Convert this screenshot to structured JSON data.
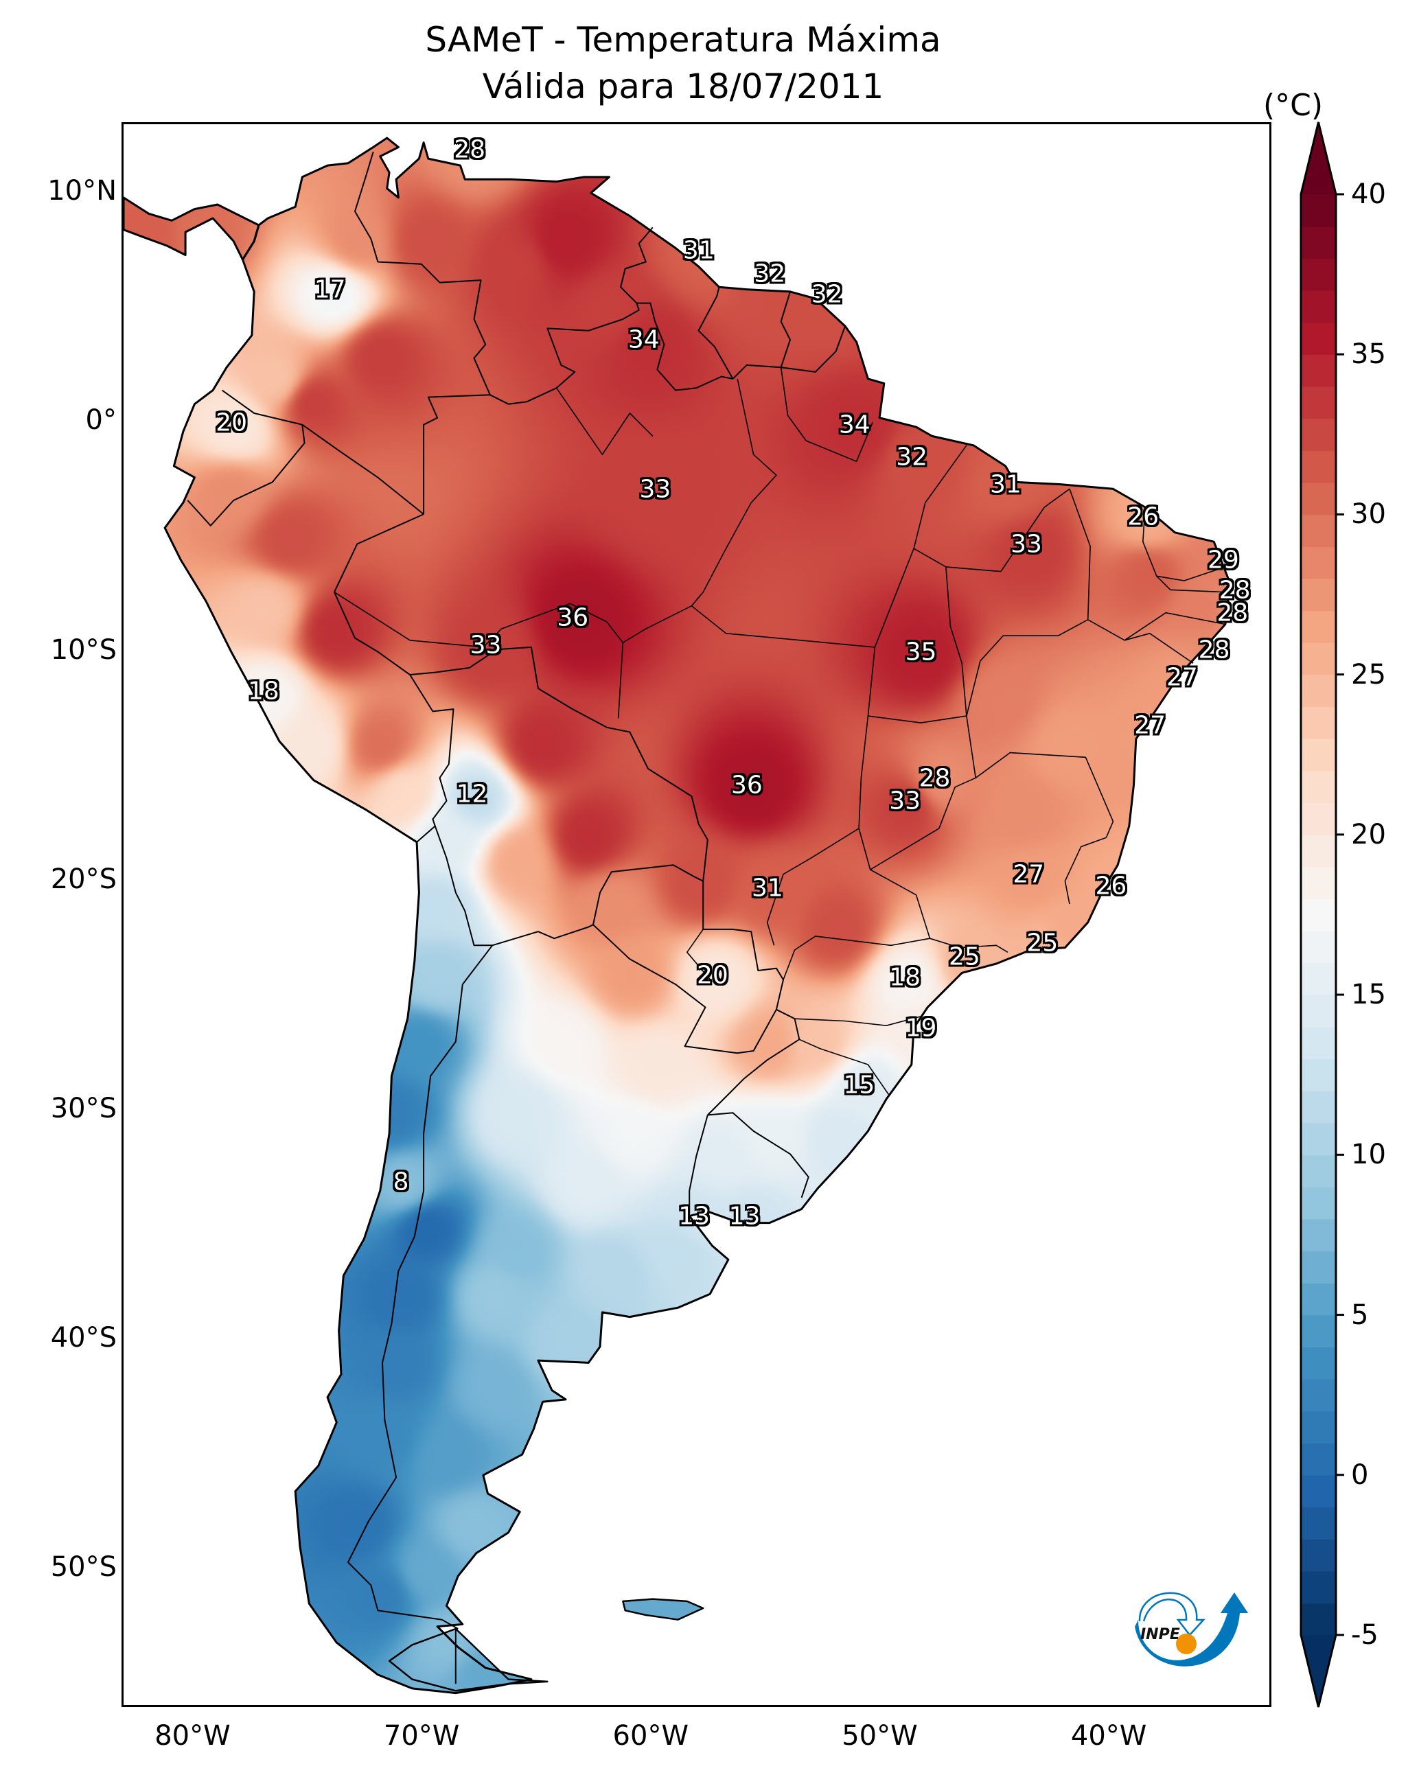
{
  "title": {
    "line1": "SAMeT - Temperatura Máxima",
    "line2": "Válida para 18/07/2011"
  },
  "colorbar": {
    "unit_label": "(°C)",
    "ticks": [
      "40",
      "35",
      "30",
      "25",
      "20",
      "15",
      "10",
      "5",
      "0",
      "-5"
    ],
    "colors": [
      "#053061",
      "#2166ac",
      "#4393c3",
      "#92c5de",
      "#d1e5f0",
      "#f7f7f7",
      "#fddbc7",
      "#f4a582",
      "#d6604d",
      "#b2182b",
      "#67001f"
    ]
  },
  "logo": {
    "text": "INPE",
    "blue": "#0077bb",
    "orange": "#f39200"
  },
  "chart_data": {
    "type": "heatmap",
    "title": "SAMeT - Temperatura Máxima — Válida para 18/07/2011",
    "variable": "Maximum temperature",
    "units": "°C",
    "colormap": "RdBu_r",
    "vmin": -5,
    "vmax": 40,
    "colorbar_extend": "both",
    "colorbar_ticks": [
      -5,
      0,
      5,
      10,
      15,
      20,
      25,
      30,
      35,
      40
    ],
    "lon_range": [
      -83.1,
      -32.9
    ],
    "lat_range": [
      -56.1,
      13.0
    ],
    "xticks": [
      "80°W",
      "70°W",
      "60°W",
      "50°W",
      "40°W"
    ],
    "yticks": [
      "10°N",
      "0°",
      "10°S",
      "20°S",
      "30°S",
      "40°S",
      "50°S"
    ],
    "xtick_values": [
      -80,
      -70,
      -60,
      -50,
      -40
    ],
    "ytick_values": [
      10,
      0,
      -10,
      -20,
      -30,
      -40,
      -50
    ],
    "station_labels": [
      {
        "value": "28",
        "lon": -67.9,
        "lat": 11.8
      },
      {
        "value": "17",
        "lon": -74.0,
        "lat": 5.7
      },
      {
        "value": "31",
        "lon": -57.9,
        "lat": 7.4
      },
      {
        "value": "32",
        "lon": -54.8,
        "lat": 6.4
      },
      {
        "value": "32",
        "lon": -52.3,
        "lat": 5.5
      },
      {
        "value": "34",
        "lon": -60.3,
        "lat": 3.5
      },
      {
        "value": "20",
        "lon": -78.3,
        "lat": -0.1
      },
      {
        "value": "34",
        "lon": -51.1,
        "lat": -0.2
      },
      {
        "value": "32",
        "lon": -48.6,
        "lat": -1.6
      },
      {
        "value": "31",
        "lon": -44.5,
        "lat": -2.8
      },
      {
        "value": "33",
        "lon": -59.8,
        "lat": -3.0
      },
      {
        "value": "26",
        "lon": -38.5,
        "lat": -4.2
      },
      {
        "value": "33",
        "lon": -43.6,
        "lat": -5.4
      },
      {
        "value": "29",
        "lon": -35.0,
        "lat": -6.1
      },
      {
        "value": "28",
        "lon": -34.5,
        "lat": -7.4
      },
      {
        "value": "28",
        "lon": -34.6,
        "lat": -8.4
      },
      {
        "value": "36",
        "lon": -63.4,
        "lat": -8.6
      },
      {
        "value": "33",
        "lon": -67.2,
        "lat": -9.8
      },
      {
        "value": "28",
        "lon": -35.4,
        "lat": -10.0
      },
      {
        "value": "35",
        "lon": -48.2,
        "lat": -10.1
      },
      {
        "value": "27",
        "lon": -36.8,
        "lat": -11.2
      },
      {
        "value": "18",
        "lon": -76.9,
        "lat": -11.8
      },
      {
        "value": "27",
        "lon": -38.2,
        "lat": -13.3
      },
      {
        "value": "36",
        "lon": -55.8,
        "lat": -15.9
      },
      {
        "value": "28",
        "lon": -47.6,
        "lat": -15.6
      },
      {
        "value": "33",
        "lon": -48.9,
        "lat": -16.6
      },
      {
        "value": "12",
        "lon": -67.8,
        "lat": -16.3
      },
      {
        "value": "27",
        "lon": -43.5,
        "lat": -19.8
      },
      {
        "value": "26",
        "lon": -39.9,
        "lat": -20.3
      },
      {
        "value": "31",
        "lon": -54.9,
        "lat": -20.4
      },
      {
        "value": "25",
        "lon": -42.9,
        "lat": -22.8
      },
      {
        "value": "25",
        "lon": -46.3,
        "lat": -23.4
      },
      {
        "value": "20",
        "lon": -57.3,
        "lat": -24.2
      },
      {
        "value": "18",
        "lon": -48.9,
        "lat": -24.3
      },
      {
        "value": "19",
        "lon": -48.2,
        "lat": -26.5
      },
      {
        "value": "15",
        "lon": -50.9,
        "lat": -29.0
      },
      {
        "value": "8",
        "lon": -70.9,
        "lat": -33.2
      },
      {
        "value": "13",
        "lon": -58.1,
        "lat": -34.7
      },
      {
        "value": "13",
        "lon": -55.9,
        "lat": -34.7
      }
    ]
  }
}
